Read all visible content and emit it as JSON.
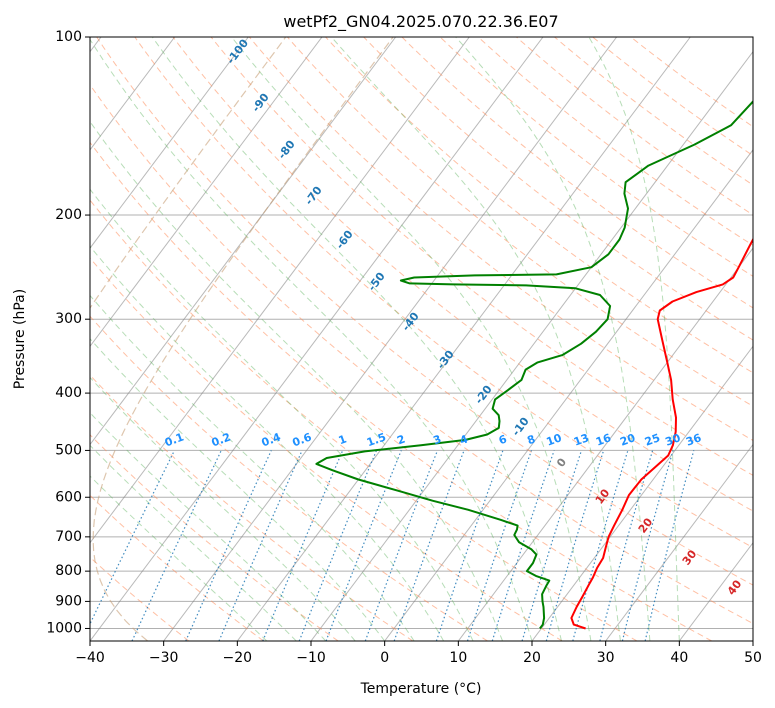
{
  "chart_data": {
    "type": "line",
    "title": "wetPf2_GN04.2025.070.22.36.E07",
    "xlabel": "Temperature (°C)",
    "ylabel": "Pressure (hPa)",
    "xlim": [
      -40,
      50
    ],
    "ylim": [
      1050,
      100
    ],
    "y_scale": "log",
    "x_ticks": [
      "−40",
      "−30",
      "−20",
      "−10",
      "0",
      "10",
      "20",
      "30",
      "40",
      "50"
    ],
    "x_tick_values": [
      -40,
      -30,
      -20,
      -10,
      0,
      10,
      20,
      30,
      40,
      50
    ],
    "y_ticks": [
      "100",
      "200",
      "300",
      "400",
      "500",
      "600",
      "700",
      "800",
      "900",
      "1000"
    ],
    "y_tick_values": [
      100,
      200,
      300,
      400,
      500,
      600,
      700,
      800,
      900,
      1000
    ],
    "grid": true,
    "colors": {
      "temperature": "#ff0000",
      "dewpoint": "#008000",
      "isotherm": "#808080",
      "dry_adiabat": "#ff8c5a",
      "moist_adiabat": "#5fb45f",
      "mixing_ratio": "#1f77b4",
      "skewed_isotherm_label": "#1f77b4",
      "mixing_ratio_label": "#1e90ff",
      "zero_label": "#808080",
      "warm_label": "#d62728",
      "lcl_curve": "#c8a078"
    },
    "series": [
      {
        "role": "temperature",
        "points": [
          [
            26.0,
            1000
          ],
          [
            24.0,
            985
          ],
          [
            23.0,
            960
          ],
          [
            22.6,
            920
          ],
          [
            22.3,
            880
          ],
          [
            22.0,
            845
          ],
          [
            21.8,
            820
          ],
          [
            21.4,
            790
          ],
          [
            21.2,
            760
          ],
          [
            20.5,
            730
          ],
          [
            19.8,
            700
          ],
          [
            19.4,
            670
          ],
          [
            18.9,
            630
          ],
          [
            18.3,
            595
          ],
          [
            18.4,
            560
          ],
          [
            19.0,
            535
          ],
          [
            19.6,
            510
          ],
          [
            19.2,
            490
          ],
          [
            18.2,
            465
          ],
          [
            16.8,
            440
          ],
          [
            14.5,
            410
          ],
          [
            12.3,
            380
          ],
          [
            10.0,
            355
          ],
          [
            7.0,
            325
          ],
          [
            4.3,
            300
          ],
          [
            3.7,
            290
          ],
          [
            4.5,
            280
          ],
          [
            6.8,
            270
          ],
          [
            9.6,
            262
          ],
          [
            10.3,
            255
          ],
          [
            10.0,
            245
          ],
          [
            9.3,
            225
          ],
          [
            8.4,
            200
          ],
          [
            7.3,
            175
          ],
          [
            5.6,
            155
          ],
          [
            4.1,
            140
          ],
          [
            3.0,
            131
          ],
          [
            2.8,
            125
          ],
          [
            3.0,
            118
          ],
          [
            3.3,
            110
          ],
          [
            3.5,
            104
          ],
          [
            3.7,
            100
          ]
        ]
      },
      {
        "role": "dewpoint",
        "points": [
          [
            19.8,
            1000
          ],
          [
            19.8,
            985
          ],
          [
            19.3,
            960
          ],
          [
            18.1,
            920
          ],
          [
            17.4,
            900
          ],
          [
            16.6,
            875
          ],
          [
            16.3,
            845
          ],
          [
            16.2,
            830
          ],
          [
            13.9,
            815
          ],
          [
            12.2,
            800
          ],
          [
            12.2,
            775
          ],
          [
            11.8,
            750
          ],
          [
            10.6,
            735
          ],
          [
            8.2,
            715
          ],
          [
            6.8,
            695
          ],
          [
            6.6,
            680
          ],
          [
            6.3,
            670
          ],
          [
            3.4,
            655
          ],
          [
            -2.0,
            630
          ],
          [
            -7.8,
            608
          ],
          [
            -13.5,
            585
          ],
          [
            -20.0,
            560
          ],
          [
            -24.5,
            540
          ],
          [
            -27.3,
            527
          ],
          [
            -26.5,
            515
          ],
          [
            -22.0,
            502
          ],
          [
            -15.0,
            490
          ],
          [
            -9.5,
            480
          ],
          [
            -7.1,
            470
          ],
          [
            -6.2,
            458
          ],
          [
            -6.8,
            446
          ],
          [
            -7.5,
            436
          ],
          [
            -9.0,
            425
          ],
          [
            -9.6,
            410
          ],
          [
            -8.8,
            395
          ],
          [
            -8.0,
            380
          ],
          [
            -8.5,
            365
          ],
          [
            -7.6,
            355
          ],
          [
            -5.0,
            345
          ],
          [
            -3.6,
            330
          ],
          [
            -2.8,
            315
          ],
          [
            -2.5,
            300
          ],
          [
            -3.5,
            285
          ],
          [
            -6.0,
            273
          ],
          [
            -10.0,
            266
          ],
          [
            -17.0,
            263
          ],
          [
            -27.0,
            262
          ],
          [
            -33.0,
            261
          ],
          [
            -34.5,
            258
          ],
          [
            -33.0,
            255
          ],
          [
            -25.0,
            253
          ],
          [
            -14.0,
            252
          ],
          [
            -10.0,
            245
          ],
          [
            -9.0,
            233
          ],
          [
            -9.0,
            220
          ],
          [
            -9.5,
            210
          ],
          [
            -11.0,
            195
          ],
          [
            -13.0,
            184
          ],
          [
            -14.0,
            176
          ],
          [
            -12.6,
            165
          ],
          [
            -8.5,
            152
          ],
          [
            -5.5,
            141
          ],
          [
            -5.0,
            130
          ],
          [
            -4.6,
            122
          ],
          [
            -3.2,
            115
          ],
          [
            -0.8,
            108
          ],
          [
            0.8,
            104
          ],
          [
            1.6,
            100
          ]
        ]
      }
    ],
    "skewed_isotherm_labels": [
      "-100",
      "-90",
      "-80",
      "-70",
      "-60",
      "-50",
      "-40",
      "-30",
      "-20",
      "-10",
      "0",
      "10",
      "20",
      "30",
      "40"
    ],
    "mixing_ratio_labels": [
      "0.1",
      "0.2",
      "0.4",
      "0.6",
      "1",
      "1.5",
      "2",
      "3",
      "4",
      "6",
      "8",
      "10",
      "13",
      "16",
      "20",
      "25",
      "30",
      "36"
    ]
  }
}
